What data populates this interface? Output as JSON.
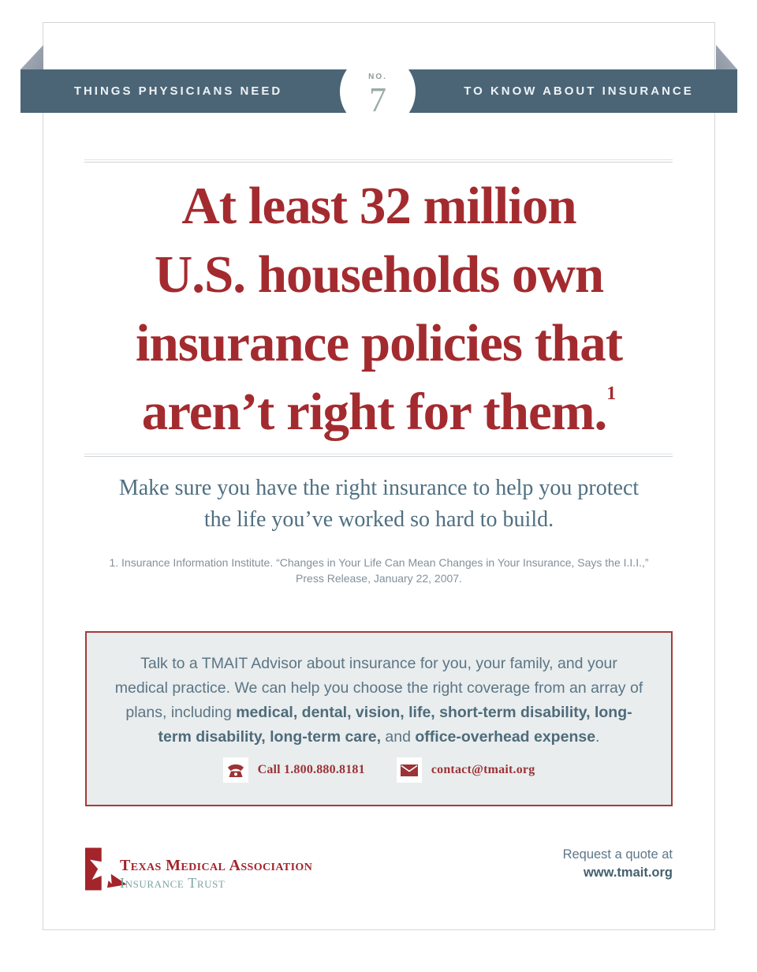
{
  "ribbon": {
    "left_label": "THINGS PHYSICIANS NEED",
    "number_label": "NO.",
    "number": "7",
    "right_label": "TO KNOW ABOUT INSURANCE"
  },
  "headline": {
    "lines": [
      "At least 32 million",
      "U.S. households own",
      "insurance policies that",
      "aren’t right for them."
    ],
    "footnote_marker": "1"
  },
  "subhead": {
    "line1": "Make sure you have the right insurance to help you protect",
    "line2": "the life you’ve worked so hard to build."
  },
  "footnote": {
    "line1": "1. Insurance Information Institute. “Changes in Your Life Can Mean Changes in Your Insurance, Says the I.I.I.,”",
    "line2": "Press Release, January 22, 2007."
  },
  "advisor_box": {
    "text_runs": [
      {
        "text": "Talk to a TMAIT Advisor about insurance for you, your family, and your medical practice. We can help you choose the right coverage from an array of plans, including ",
        "bold": false
      },
      {
        "text": "medical, dental, vision, life, short-term disability, long-term disability, long-term care,",
        "bold": true
      },
      {
        "text": " and ",
        "bold": false
      },
      {
        "text": "office-overhead expense",
        "bold": true
      },
      {
        "text": ".",
        "bold": false
      }
    ],
    "phone_label": "Call 1.800.880.8181",
    "email_label": "contact@tmait.org"
  },
  "footer": {
    "logo_line1": "Texas Medical Association",
    "logo_line2": "Insurance Trust",
    "quote_line1": "Request a quote at",
    "quote_line2": "www.tmait.org"
  },
  "colors": {
    "ribbon_slate": "#4b6577",
    "fold_gray": "#99a2ae",
    "headline_red": "#a32b2f",
    "subhead_blue": "#4f6f80",
    "footnote_gray": "#83909a",
    "box_border_red": "#a23c3a",
    "box_background": "#e9edee",
    "box_text_blue": "#5b7584",
    "contact_red": "#9c3336",
    "logo_red": "#a3242b",
    "logo_teal": "#7da5a1"
  }
}
